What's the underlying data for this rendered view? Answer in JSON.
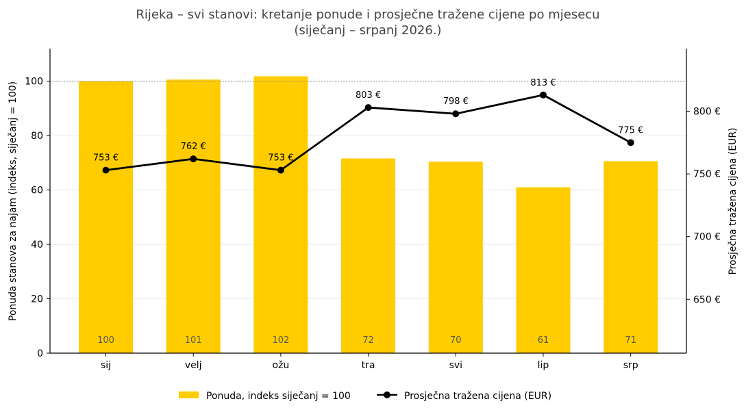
{
  "chart_data": {
    "type": "bar",
    "title": "Rijeka – svi stanovi: kretanje ponude i prosječne tražene cijene po mjesecu",
    "subtitle": "(siječanj – srpanj 2026.)",
    "categories": [
      "sij",
      "velj",
      "ožu",
      "tra",
      "svi",
      "lip",
      "srp"
    ],
    "series": [
      {
        "name": "Ponuda, indeks siječanj = 100",
        "type": "bar",
        "axis": "left",
        "color": "#FFCC00",
        "values": [
          100,
          101,
          102,
          72,
          70,
          61,
          71
        ],
        "plot_values": [
          100,
          100.6,
          101.8,
          71.6,
          70.4,
          61,
          70.6
        ],
        "labels": [
          "100",
          "101",
          "102",
          "72",
          "70",
          "61",
          "71"
        ]
      },
      {
        "name": "Prosječna tražena cijena (EUR)",
        "type": "line",
        "axis": "right",
        "color": "#000000",
        "values": [
          753,
          762,
          753,
          803,
          798,
          813,
          775
        ],
        "labels": [
          "753 €",
          "762 €",
          "753 €",
          "803 €",
          "798 €",
          "813 €",
          "775 €"
        ]
      }
    ],
    "ylabel": "Ponuda stanova za najam (indeks, siječanj = 100)",
    "ylabel_right": "Prosječna tražena cijena (EUR)",
    "ylim": [
      0,
      112
    ],
    "ylim_right": [
      607,
      850
    ],
    "yticks": [
      0,
      20,
      40,
      60,
      80,
      100
    ],
    "yticks_right": [
      650,
      700,
      750,
      800
    ],
    "ytick_labels_right": [
      "650 €",
      "700 €",
      "750 €",
      "800 €"
    ],
    "reference_line": 100,
    "grid": true,
    "legend_position": "bottom"
  }
}
